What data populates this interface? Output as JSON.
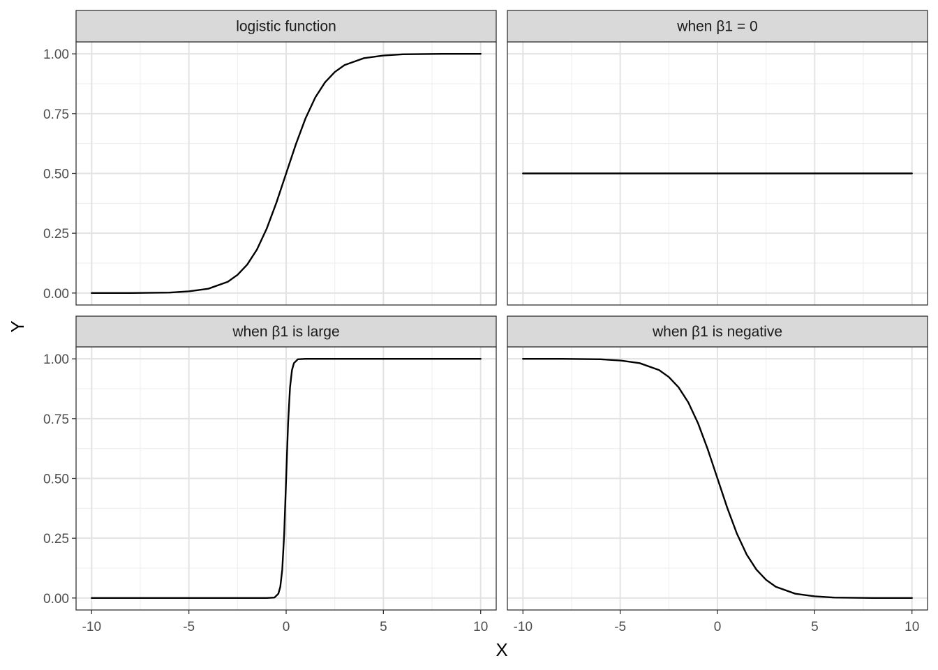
{
  "chart_data": {
    "type": "line",
    "layout": "facet-grid-2x2",
    "xlabel": "X",
    "ylabel": "Y",
    "xlim": [
      -10.8,
      10.8
    ],
    "ylim": [
      -0.05,
      1.05
    ],
    "x_ticks": [
      -10,
      -5,
      0,
      5,
      10
    ],
    "x_tick_labels": [
      "-10",
      "-5",
      "0",
      "5",
      "10"
    ],
    "y_ticks": [
      0,
      0.25,
      0.5,
      0.75,
      1
    ],
    "y_tick_labels": [
      "0.00",
      "0.25",
      "0.50",
      "0.75",
      "1.00"
    ],
    "grid": true,
    "line_color": "#000000",
    "panels": [
      {
        "title": "logistic function",
        "x": [
          -10,
          -8,
          -6,
          -5,
          -4,
          -3,
          -2.5,
          -2,
          -1.5,
          -1,
          -0.5,
          0,
          0.5,
          1,
          1.5,
          2,
          2.5,
          3,
          4,
          5,
          6,
          8,
          10
        ],
        "y": [
          0.0,
          0.0,
          0.002,
          0.007,
          0.018,
          0.047,
          0.076,
          0.119,
          0.182,
          0.269,
          0.378,
          0.5,
          0.622,
          0.731,
          0.818,
          0.881,
          0.924,
          0.953,
          0.982,
          0.993,
          0.998,
          1.0,
          1.0
        ]
      },
      {
        "title": "when β1 = 0",
        "x": [
          -10,
          10
        ],
        "y": [
          0.5,
          0.5
        ]
      },
      {
        "title": "when β1 is large",
        "x": [
          -10,
          -1,
          -0.6,
          -0.4,
          -0.3,
          -0.2,
          -0.1,
          0,
          0.1,
          0.2,
          0.3,
          0.4,
          0.6,
          1,
          10
        ],
        "y": [
          0.0,
          0.0,
          0.002,
          0.018,
          0.047,
          0.119,
          0.269,
          0.5,
          0.731,
          0.881,
          0.953,
          0.982,
          0.998,
          1.0,
          1.0
        ]
      },
      {
        "title": "when β1 is negative",
        "x": [
          -10,
          -8,
          -6,
          -5,
          -4,
          -3,
          -2.5,
          -2,
          -1.5,
          -1,
          -0.5,
          0,
          0.5,
          1,
          1.5,
          2,
          2.5,
          3,
          4,
          5,
          6,
          8,
          10
        ],
        "y": [
          1.0,
          1.0,
          0.998,
          0.993,
          0.982,
          0.953,
          0.924,
          0.881,
          0.818,
          0.731,
          0.622,
          0.5,
          0.378,
          0.269,
          0.182,
          0.119,
          0.076,
          0.047,
          0.018,
          0.007,
          0.002,
          0.0,
          0.0
        ]
      }
    ]
  }
}
